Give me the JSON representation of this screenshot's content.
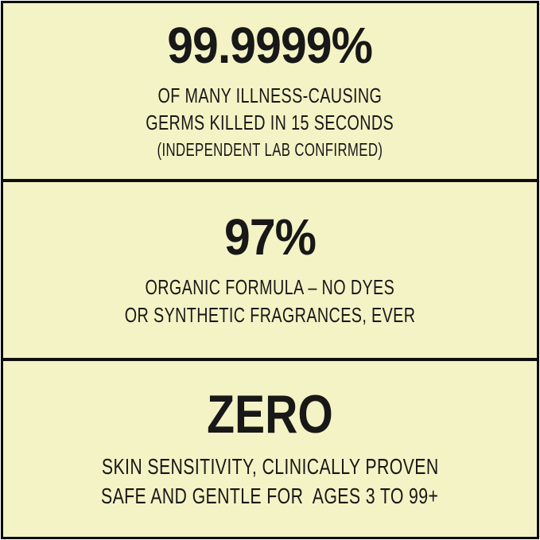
{
  "colors": {
    "panel_bg": "#f3f3c5",
    "border": "#0e0e0e",
    "text": "#181818"
  },
  "panels": [
    {
      "stat": "99.9999%",
      "lines": [
        "OF MANY ILLNESS-CAUSING",
        "GERMS KILLED IN 15 SECONDS"
      ],
      "note": "(INDEPENDENT LAB CONFIRMED)"
    },
    {
      "stat": "97%",
      "lines": [
        "ORGANIC FORMULA – NO DYES",
        "OR SYNTHETIC FRAGRANCES, EVER"
      ]
    },
    {
      "stat": "ZERO",
      "lines": [
        "SKIN SENSITIVITY, CLINICALLY PROVEN",
        "SAFE AND GENTLE FOR  AGES 3 TO 99+"
      ]
    }
  ]
}
